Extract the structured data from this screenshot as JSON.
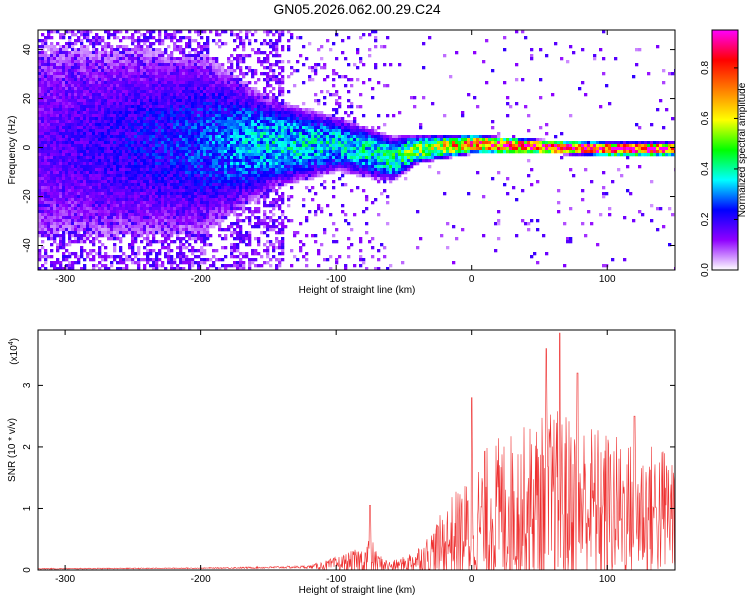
{
  "title": "GN05.2026.062.00.29.C24",
  "chart_data": [
    {
      "type": "heatmap",
      "title": "GN05.2026.062.00.29.C24",
      "xlabel": "Height of straight line (km)",
      "ylabel": "Frequency (Hz)",
      "xlim": [
        -320,
        150
      ],
      "ylim": [
        -50,
        48
      ],
      "xticks": [
        "-300",
        "-200",
        "-100",
        "0",
        "100"
      ],
      "yticks": [
        "-40",
        "-20",
        "0",
        "20",
        "40"
      ],
      "signal_ridge": {
        "description_x_km": [
          -320,
          -200,
          -150,
          -100,
          -60,
          -40,
          0,
          50,
          100,
          150
        ],
        "center_hz": [
          3,
          2,
          2,
          2,
          -4,
          0,
          2,
          1,
          0,
          0
        ],
        "normalized_amplitude": [
          0.15,
          0.25,
          0.35,
          0.35,
          0.4,
          0.5,
          0.75,
          0.85,
          0.9,
          0.85
        ],
        "half_width_hz": [
          45,
          40,
          20,
          12,
          10,
          6,
          4,
          3,
          3,
          3
        ]
      },
      "colorbar": {
        "label": "Normalized spectral amplitude",
        "range": [
          0,
          0.95
        ],
        "ticks": [
          "0.0",
          "0.2",
          "0.4",
          "0.6",
          "0.8"
        ],
        "colors": [
          "#ffffff",
          "#8f00ff",
          "#0000ff",
          "#00ffff",
          "#00ff00",
          "#ffff00",
          "#ff7f00",
          "#ff0000",
          "#ff00ff"
        ]
      }
    },
    {
      "type": "line",
      "xlabel": "Height of straight line (km)",
      "ylabel": "SNR (10 * v/v)",
      "scale_label": "(x10",
      "scale_exp": "4",
      "xlim": [
        -320,
        150
      ],
      "ylim": [
        0,
        3.9
      ],
      "xticks": [
        "-300",
        "-200",
        "-100",
        "0",
        "100"
      ],
      "yticks": [
        "0",
        "1",
        "2",
        "3"
      ],
      "color": "#ee3030",
      "envelope": {
        "x_km": [
          -320,
          -200,
          -150,
          -120,
          -105,
          -90,
          -80,
          -75,
          -70,
          -60,
          -50,
          -35,
          -25,
          -15,
          0,
          10,
          20,
          40,
          60,
          80,
          100,
          120,
          150
        ],
        "base": [
          0.02,
          0.03,
          0.04,
          0.05,
          0.08,
          0.12,
          0.15,
          0.2,
          0.12,
          0.06,
          0.1,
          0.2,
          0.35,
          0.5,
          0.6,
          0.8,
          0.9,
          1.0,
          1.05,
          1.05,
          1.0,
          0.95,
          0.95
        ],
        "amp": [
          0.01,
          0.01,
          0.02,
          0.03,
          0.12,
          0.22,
          0.3,
          0.5,
          0.2,
          0.1,
          0.15,
          0.35,
          0.6,
          0.9,
          1.2,
          1.5,
          1.6,
          1.7,
          2.0,
          1.8,
          1.6,
          1.4,
          1.4
        ]
      },
      "peaks": [
        {
          "x": 55,
          "y": 3.6
        },
        {
          "x": 65,
          "y": 3.85
        },
        {
          "x": 78,
          "y": 3.2
        },
        {
          "x": 0,
          "y": 2.8
        },
        {
          "x": 120,
          "y": 2.5
        },
        {
          "x": -75,
          "y": 1.05
        }
      ]
    }
  ]
}
